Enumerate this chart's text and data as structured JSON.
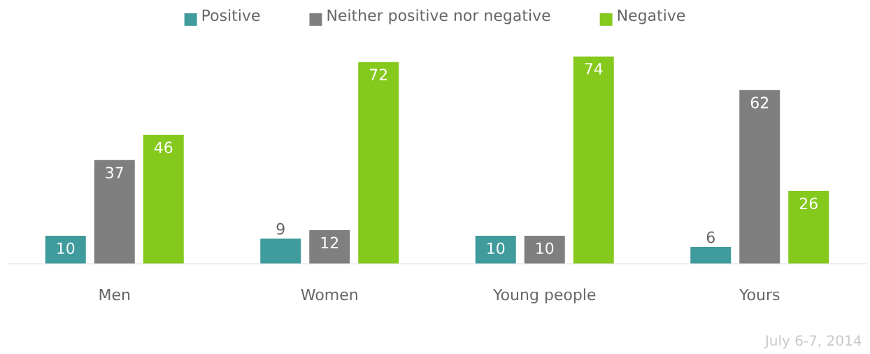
{
  "chart_data": {
    "type": "bar",
    "categories": [
      "Men",
      "Women",
      "Young people",
      "Yours"
    ],
    "series": [
      {
        "name": "Positive",
        "color": "#3f9b9c",
        "values": [
          10,
          9,
          10,
          6
        ]
      },
      {
        "name": "Neither positive nor negative",
        "color": "#7f7f7f",
        "values": [
          37,
          12,
          10,
          62
        ]
      },
      {
        "name": "Negative",
        "color": "#84c91c",
        "values": [
          46,
          72,
          74,
          26
        ]
      }
    ],
    "data_labels": true,
    "legend": "top",
    "annotations": [
      "July 6-7, 2014"
    ]
  }
}
